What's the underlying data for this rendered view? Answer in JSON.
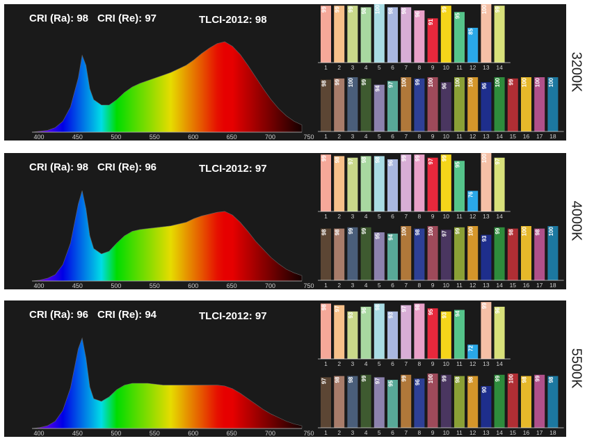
{
  "rf_colors": [
    "#f5a899",
    "#f7c08a",
    "#c9d88a",
    "#a8d8a0",
    "#a9dce4",
    "#a9b8e0",
    "#d8aed6",
    "#e9a0c8",
    "#e8283c",
    "#f5d51a",
    "#55c48a",
    "#2aa8e8",
    "#f5c0a6",
    "#d8e07a"
  ],
  "r18_colors": [
    "#5c4634",
    "#a87c6a",
    "#4a5e7a",
    "#3e5a30",
    "#8c82ae",
    "#58a898",
    "#b0783a",
    "#2e4096",
    "#9e4a5a",
    "#4a3660",
    "#8aa036",
    "#d4962a",
    "#1e2e8c",
    "#2e8c3c",
    "#b02e34",
    "#e6b82a",
    "#b0508a",
    "#1c78a0"
  ],
  "chart_data": [
    {
      "type": "panel",
      "cct": "3200K",
      "cri_ra": "CRI (Ra): 98",
      "cri_re": "CRI (Re): 97",
      "tlci": "TLCI-2012: 98",
      "spectrum": {
        "type": "area",
        "x": [
          400,
          410,
          420,
          430,
          440,
          450,
          460,
          465,
          470,
          475,
          480,
          490,
          500,
          510,
          520,
          530,
          540,
          550,
          560,
          570,
          580,
          590,
          600,
          610,
          620,
          630,
          640,
          650,
          660,
          670,
          680,
          690,
          700,
          710,
          720,
          730,
          740,
          750
        ],
        "y": [
          0,
          0.01,
          0.02,
          0.05,
          0.12,
          0.28,
          0.6,
          0.85,
          0.74,
          0.48,
          0.36,
          0.3,
          0.3,
          0.36,
          0.44,
          0.5,
          0.54,
          0.57,
          0.6,
          0.63,
          0.66,
          0.7,
          0.74,
          0.8,
          0.87,
          0.93,
          0.98,
          1,
          0.95,
          0.86,
          0.74,
          0.61,
          0.48,
          0.36,
          0.26,
          0.18,
          0.12,
          0.08
        ],
        "xticks": [
          400,
          450,
          500,
          550,
          600,
          650,
          700,
          750
        ]
      },
      "rf": {
        "type": "bar",
        "categories": [
          "1",
          "2",
          "3",
          "4",
          "5",
          "6",
          "7",
          "8",
          "9",
          "10",
          "11",
          "12",
          "13",
          "14"
        ],
        "values": [
          99,
          99,
          99,
          98,
          100,
          98,
          98,
          96,
          91,
          99,
          95,
          85,
          100,
          99
        ]
      },
      "r18": {
        "type": "bar",
        "categories": [
          "1",
          "2",
          "3",
          "4",
          "5",
          "6",
          "7",
          "8",
          "9",
          "10",
          "11",
          "12",
          "13",
          "14",
          "15",
          "16",
          "17",
          "18"
        ],
        "values": [
          98,
          99,
          100,
          99,
          94,
          97,
          100,
          99,
          100,
          96,
          100,
          100,
          96,
          100,
          99,
          100,
          100,
          100
        ]
      }
    },
    {
      "type": "panel",
      "cct": "4000K",
      "cri_ra": "CRI (Ra): 98",
      "cri_re": "CRI (Re): 96",
      "tlci": "TLCI-2012: 97",
      "spectrum": {
        "type": "area",
        "x": [
          400,
          410,
          420,
          430,
          440,
          450,
          460,
          465,
          470,
          475,
          480,
          490,
          500,
          510,
          520,
          530,
          540,
          550,
          560,
          570,
          580,
          590,
          600,
          610,
          620,
          630,
          640,
          650,
          660,
          670,
          680,
          690,
          700,
          710,
          720,
          730,
          740,
          750
        ],
        "y": [
          0,
          0.01,
          0.03,
          0.07,
          0.18,
          0.42,
          0.85,
          1,
          0.8,
          0.5,
          0.36,
          0.3,
          0.33,
          0.42,
          0.5,
          0.55,
          0.57,
          0.58,
          0.59,
          0.6,
          0.61,
          0.63,
          0.65,
          0.69,
          0.72,
          0.74,
          0.76,
          0.77,
          0.73,
          0.65,
          0.55,
          0.44,
          0.35,
          0.26,
          0.19,
          0.13,
          0.09,
          0.06
        ],
        "xticks": [
          400,
          450,
          500,
          550,
          600,
          650,
          700,
          750
        ]
      },
      "rf": {
        "type": "bar",
        "categories": [
          "1",
          "2",
          "3",
          "4",
          "5",
          "6",
          "7",
          "8",
          "9",
          "10",
          "11",
          "12",
          "13",
          "14"
        ],
        "values": [
          99,
          98,
          97,
          98,
          98,
          96,
          99,
          99,
          97,
          99,
          95,
          76,
          100,
          97
        ]
      },
      "r18": {
        "type": "bar",
        "categories": [
          "1",
          "2",
          "3",
          "4",
          "5",
          "6",
          "7",
          "8",
          "9",
          "10",
          "11",
          "12",
          "13",
          "14",
          "15",
          "16",
          "17",
          "18"
        ],
        "values": [
          98,
          98,
          99,
          99,
          95,
          94,
          100,
          98,
          100,
          97,
          99,
          100,
          93,
          99,
          98,
          100,
          98,
          100
        ]
      }
    },
    {
      "type": "panel",
      "cct": "5500K",
      "cri_ra": "CRI (Ra): 96",
      "cri_re": "CRI (Re): 94",
      "tlci": "TLCI-2012: 97",
      "spectrum": {
        "type": "area",
        "x": [
          400,
          410,
          420,
          430,
          440,
          450,
          460,
          465,
          470,
          475,
          480,
          490,
          500,
          510,
          520,
          530,
          540,
          550,
          560,
          570,
          580,
          590,
          600,
          610,
          620,
          630,
          640,
          650,
          660,
          670,
          680,
          690,
          700,
          710,
          720,
          730,
          740,
          750
        ],
        "y": [
          0,
          0.01,
          0.03,
          0.08,
          0.2,
          0.45,
          0.88,
          1,
          0.78,
          0.46,
          0.33,
          0.3,
          0.35,
          0.43,
          0.48,
          0.5,
          0.5,
          0.5,
          0.49,
          0.48,
          0.48,
          0.48,
          0.48,
          0.48,
          0.48,
          0.48,
          0.48,
          0.47,
          0.44,
          0.39,
          0.33,
          0.27,
          0.21,
          0.16,
          0.12,
          0.08,
          0.05,
          0.03
        ],
        "xticks": [
          400,
          450,
          500,
          550,
          600,
          650,
          700,
          750
        ]
      },
      "rf": {
        "type": "bar",
        "categories": [
          "1",
          "2",
          "3",
          "4",
          "5",
          "6",
          "7",
          "8",
          "9",
          "10",
          "11",
          "12",
          "13",
          "14"
        ],
        "values": [
          98,
          97,
          93,
          96,
          98,
          93,
          97,
          98,
          95,
          93,
          94,
          72,
          99,
          96
        ]
      },
      "r18": {
        "type": "bar",
        "categories": [
          "1",
          "2",
          "3",
          "4",
          "5",
          "6",
          "7",
          "8",
          "9",
          "10",
          "11",
          "12",
          "13",
          "14",
          "15",
          "16",
          "17",
          "18"
        ],
        "values": [
          97,
          98,
          98,
          99,
          97,
          95,
          99,
          96,
          100,
          99,
          98,
          98,
          90,
          99,
          100,
          98,
          99,
          98
        ]
      }
    }
  ]
}
